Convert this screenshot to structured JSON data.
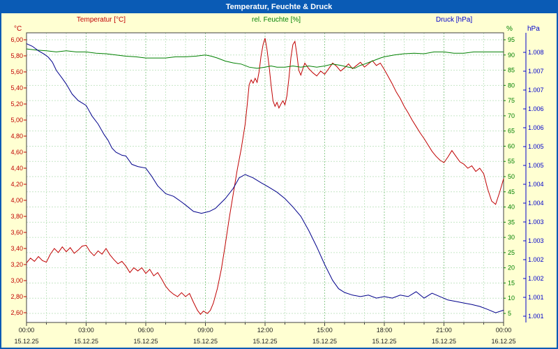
{
  "window": {
    "title": "Temperatur, Feuchte & Druck"
  },
  "colors": {
    "window_border": "#0a5bb5",
    "titlebar_bg": "#0a5bb5",
    "titlebar_text": "#ffffff",
    "background": "#ffffd2",
    "plot_bg": "#ffffff",
    "plot_frame": "#404040",
    "grid_minor": "#c6e6c6",
    "grid_major": "#8fcb8f",
    "axis_text": "#202020"
  },
  "header": {
    "series_labels": [
      {
        "key": "temperature",
        "label": "Temperatur [°C]",
        "color": "#c00000"
      },
      {
        "key": "humidity",
        "label": "rel. Feuchte [%]",
        "color": "#008000"
      },
      {
        "key": "pressure",
        "label": "Druck [hPa]",
        "color": "#0000cc"
      }
    ]
  },
  "chart_data": {
    "type": "line",
    "title": "Temperatur, Feuchte & Druck",
    "x_axis": {
      "range_hours": [
        0,
        24
      ],
      "major_tick_hours": 3,
      "minor_tick_hours": 1,
      "time_labels": [
        "00:00",
        "03:00",
        "06:00",
        "09:00",
        "12:00",
        "15:00",
        "18:00",
        "21:00",
        "00:00"
      ],
      "date_labels": [
        "15.12.25",
        "15.12.25",
        "15.12.25",
        "15.12.25",
        "15.12.25",
        "15.12.25",
        "15.12.25",
        "15.12.25",
        "16.12.25"
      ]
    },
    "axes": {
      "temperature": {
        "unit": "°C",
        "color": "#c00000",
        "min": 2.6,
        "max": 6.0,
        "tick_labels": [
          "6,00",
          "5,80",
          "5,60",
          "5,40",
          "5,20",
          "5,00",
          "4,80",
          "4,60",
          "4,40",
          "4,20",
          "4,00",
          "3,80",
          "3,60",
          "3,40",
          "3,20",
          "3,00",
          "2,80",
          "2,60"
        ]
      },
      "humidity": {
        "unit": "%",
        "color": "#008000",
        "min": 5,
        "max": 95,
        "tick_labels": [
          "95",
          "90",
          "85",
          "80",
          "75",
          "70",
          "65",
          "60",
          "55",
          "50",
          "45",
          "40",
          "35",
          "30",
          "25",
          "20",
          "15",
          "10",
          "5"
        ]
      },
      "pressure": {
        "unit": "hPa",
        "color": "#0000cc",
        "min": 1.001,
        "max": 1.008,
        "tick_labels": [
          "1.008",
          "1.007",
          "1.007",
          "1.006",
          "1.006",
          "1.005",
          "1.005",
          "1.004",
          "1.004",
          "1.003",
          "1.003",
          "1.002",
          "1.002",
          "1.001",
          "1.001"
        ]
      }
    },
    "series": [
      {
        "key": "temperature",
        "name": "Temperatur",
        "axis": "temperature",
        "color": "#c00000",
        "points": [
          [
            0.0,
            3.22
          ],
          [
            0.2,
            3.28
          ],
          [
            0.4,
            3.24
          ],
          [
            0.6,
            3.3
          ],
          [
            0.8,
            3.25
          ],
          [
            1.0,
            3.23
          ],
          [
            1.2,
            3.33
          ],
          [
            1.4,
            3.4
          ],
          [
            1.6,
            3.35
          ],
          [
            1.8,
            3.42
          ],
          [
            2.0,
            3.36
          ],
          [
            2.2,
            3.41
          ],
          [
            2.4,
            3.34
          ],
          [
            2.6,
            3.38
          ],
          [
            2.8,
            3.43
          ],
          [
            3.0,
            3.44
          ],
          [
            3.2,
            3.36
          ],
          [
            3.4,
            3.31
          ],
          [
            3.6,
            3.37
          ],
          [
            3.8,
            3.33
          ],
          [
            4.0,
            3.4
          ],
          [
            4.2,
            3.32
          ],
          [
            4.4,
            3.26
          ],
          [
            4.6,
            3.21
          ],
          [
            4.8,
            3.24
          ],
          [
            5.0,
            3.18
          ],
          [
            5.2,
            3.1
          ],
          [
            5.4,
            3.16
          ],
          [
            5.6,
            3.12
          ],
          [
            5.8,
            3.16
          ],
          [
            6.0,
            3.09
          ],
          [
            6.2,
            3.14
          ],
          [
            6.4,
            3.06
          ],
          [
            6.6,
            3.1
          ],
          [
            6.8,
            3.02
          ],
          [
            7.0,
            2.93
          ],
          [
            7.2,
            2.87
          ],
          [
            7.4,
            2.83
          ],
          [
            7.6,
            2.8
          ],
          [
            7.8,
            2.85
          ],
          [
            8.0,
            2.8
          ],
          [
            8.2,
            2.84
          ],
          [
            8.4,
            2.73
          ],
          [
            8.6,
            2.63
          ],
          [
            8.75,
            2.58
          ],
          [
            8.9,
            2.62
          ],
          [
            9.1,
            2.59
          ],
          [
            9.25,
            2.63
          ],
          [
            9.4,
            2.72
          ],
          [
            9.6,
            2.9
          ],
          [
            9.8,
            3.14
          ],
          [
            10.0,
            3.45
          ],
          [
            10.2,
            3.78
          ],
          [
            10.4,
            4.08
          ],
          [
            10.6,
            4.38
          ],
          [
            10.8,
            4.64
          ],
          [
            11.0,
            4.95
          ],
          [
            11.1,
            5.18
          ],
          [
            11.2,
            5.44
          ],
          [
            11.3,
            5.5
          ],
          [
            11.4,
            5.46
          ],
          [
            11.5,
            5.52
          ],
          [
            11.6,
            5.47
          ],
          [
            11.7,
            5.6
          ],
          [
            11.8,
            5.8
          ],
          [
            11.9,
            5.94
          ],
          [
            12.0,
            6.02
          ],
          [
            12.1,
            5.88
          ],
          [
            12.2,
            5.68
          ],
          [
            12.3,
            5.44
          ],
          [
            12.4,
            5.24
          ],
          [
            12.5,
            5.17
          ],
          [
            12.6,
            5.22
          ],
          [
            12.7,
            5.15
          ],
          [
            12.8,
            5.2
          ],
          [
            12.9,
            5.24
          ],
          [
            13.0,
            5.19
          ],
          [
            13.1,
            5.3
          ],
          [
            13.2,
            5.52
          ],
          [
            13.3,
            5.78
          ],
          [
            13.4,
            5.94
          ],
          [
            13.5,
            5.98
          ],
          [
            13.6,
            5.82
          ],
          [
            13.7,
            5.62
          ],
          [
            13.8,
            5.56
          ],
          [
            13.9,
            5.64
          ],
          [
            14.0,
            5.71
          ],
          [
            14.2,
            5.64
          ],
          [
            14.4,
            5.59
          ],
          [
            14.6,
            5.55
          ],
          [
            14.8,
            5.61
          ],
          [
            15.0,
            5.57
          ],
          [
            15.2,
            5.64
          ],
          [
            15.4,
            5.71
          ],
          [
            15.6,
            5.67
          ],
          [
            15.8,
            5.61
          ],
          [
            16.0,
            5.65
          ],
          [
            16.2,
            5.7
          ],
          [
            16.4,
            5.64
          ],
          [
            16.6,
            5.68
          ],
          [
            16.8,
            5.72
          ],
          [
            17.0,
            5.66
          ],
          [
            17.2,
            5.7
          ],
          [
            17.4,
            5.74
          ],
          [
            17.6,
            5.68
          ],
          [
            17.8,
            5.71
          ],
          [
            18.0,
            5.63
          ],
          [
            18.2,
            5.54
          ],
          [
            18.4,
            5.45
          ],
          [
            18.6,
            5.35
          ],
          [
            18.8,
            5.27
          ],
          [
            19.0,
            5.17
          ],
          [
            19.2,
            5.09
          ],
          [
            19.4,
            5.0
          ],
          [
            19.6,
            4.92
          ],
          [
            19.8,
            4.84
          ],
          [
            20.0,
            4.77
          ],
          [
            20.2,
            4.69
          ],
          [
            20.4,
            4.61
          ],
          [
            20.6,
            4.55
          ],
          [
            20.8,
            4.5
          ],
          [
            21.0,
            4.47
          ],
          [
            21.2,
            4.54
          ],
          [
            21.4,
            4.62
          ],
          [
            21.6,
            4.55
          ],
          [
            21.8,
            4.48
          ],
          [
            22.0,
            4.45
          ],
          [
            22.2,
            4.4
          ],
          [
            22.4,
            4.43
          ],
          [
            22.6,
            4.36
          ],
          [
            22.8,
            4.4
          ],
          [
            23.0,
            4.33
          ],
          [
            23.2,
            4.14
          ],
          [
            23.4,
            3.99
          ],
          [
            23.6,
            3.95
          ],
          [
            23.8,
            4.1
          ],
          [
            24.0,
            4.27
          ]
        ]
      },
      {
        "key": "humidity",
        "name": "rel. Feuchte",
        "axis": "humidity",
        "color": "#008000",
        "points": [
          [
            0.0,
            92.0
          ],
          [
            0.5,
            91.6
          ],
          [
            1.0,
            91.4
          ],
          [
            1.5,
            91.0
          ],
          [
            2.0,
            91.4
          ],
          [
            2.5,
            91.0
          ],
          [
            3.0,
            91.0
          ],
          [
            3.5,
            90.6
          ],
          [
            4.0,
            90.4
          ],
          [
            4.5,
            90.0
          ],
          [
            5.0,
            89.6
          ],
          [
            5.5,
            89.4
          ],
          [
            6.0,
            89.0
          ],
          [
            6.5,
            89.0
          ],
          [
            7.0,
            89.0
          ],
          [
            7.5,
            89.4
          ],
          [
            8.0,
            89.4
          ],
          [
            8.5,
            89.6
          ],
          [
            9.0,
            90.0
          ],
          [
            9.3,
            89.6
          ],
          [
            9.6,
            89.0
          ],
          [
            10.0,
            88.0
          ],
          [
            10.4,
            87.4
          ],
          [
            10.8,
            87.0
          ],
          [
            11.2,
            86.0
          ],
          [
            11.6,
            85.6
          ],
          [
            12.0,
            86.0
          ],
          [
            12.3,
            86.4
          ],
          [
            12.6,
            86.0
          ],
          [
            13.0,
            86.0
          ],
          [
            13.4,
            86.4
          ],
          [
            13.8,
            86.0
          ],
          [
            14.2,
            86.4
          ],
          [
            14.6,
            86.0
          ],
          [
            15.0,
            86.4
          ],
          [
            15.4,
            87.0
          ],
          [
            15.8,
            86.6
          ],
          [
            16.2,
            86.0
          ],
          [
            16.5,
            85.6
          ],
          [
            16.8,
            86.6
          ],
          [
            17.0,
            87.0
          ],
          [
            17.4,
            88.0
          ],
          [
            17.8,
            89.0
          ],
          [
            18.0,
            89.4
          ],
          [
            18.5,
            90.0
          ],
          [
            19.0,
            90.4
          ],
          [
            19.5,
            90.6
          ],
          [
            20.0,
            90.4
          ],
          [
            20.5,
            91.0
          ],
          [
            21.0,
            91.0
          ],
          [
            21.5,
            90.6
          ],
          [
            22.0,
            90.6
          ],
          [
            22.5,
            91.0
          ],
          [
            23.0,
            91.0
          ],
          [
            23.5,
            91.0
          ],
          [
            24.0,
            91.0
          ]
        ]
      },
      {
        "key": "pressure",
        "name": "Druck",
        "axis": "pressure",
        "color": "#00008b",
        "points": [
          [
            0.0,
            1.00823
          ],
          [
            0.3,
            1.00816
          ],
          [
            0.6,
            1.00804
          ],
          [
            0.9,
            1.00795
          ],
          [
            1.1,
            1.00787
          ],
          [
            1.3,
            1.00774
          ],
          [
            1.5,
            1.00752
          ],
          [
            1.8,
            1.00731
          ],
          [
            2.0,
            1.00716
          ],
          [
            2.3,
            1.00689
          ],
          [
            2.6,
            1.00672
          ],
          [
            3.0,
            1.00659
          ],
          [
            3.3,
            1.00631
          ],
          [
            3.6,
            1.0061
          ],
          [
            3.9,
            1.00582
          ],
          [
            4.1,
            1.00567
          ],
          [
            4.3,
            1.00546
          ],
          [
            4.5,
            1.00535
          ],
          [
            4.8,
            1.00527
          ],
          [
            5.0,
            1.00525
          ],
          [
            5.3,
            1.00503
          ],
          [
            5.6,
            1.00497
          ],
          [
            6.0,
            1.00493
          ],
          [
            6.3,
            1.00471
          ],
          [
            6.6,
            1.00446
          ],
          [
            7.0,
            1.00425
          ],
          [
            7.4,
            1.00418
          ],
          [
            7.8,
            1.00403
          ],
          [
            8.0,
            1.00395
          ],
          [
            8.4,
            1.00378
          ],
          [
            8.8,
            1.00373
          ],
          [
            9.2,
            1.00378
          ],
          [
            9.5,
            1.00386
          ],
          [
            10.0,
            1.00412
          ],
          [
            10.4,
            1.00439
          ],
          [
            10.7,
            1.00467
          ],
          [
            11.0,
            1.00476
          ],
          [
            11.4,
            1.00467
          ],
          [
            11.8,
            1.00454
          ],
          [
            12.2,
            1.00442
          ],
          [
            12.6,
            1.00429
          ],
          [
            13.0,
            1.00412
          ],
          [
            13.4,
            1.0039
          ],
          [
            13.8,
            1.00365
          ],
          [
            14.2,
            1.00327
          ],
          [
            14.6,
            1.00284
          ],
          [
            15.0,
            1.00237
          ],
          [
            15.4,
            1.00195
          ],
          [
            15.7,
            1.00173
          ],
          [
            16.0,
            1.00163
          ],
          [
            16.4,
            1.00156
          ],
          [
            16.8,
            1.00152
          ],
          [
            17.2,
            1.00156
          ],
          [
            17.6,
            1.00148
          ],
          [
            18.0,
            1.00152
          ],
          [
            18.4,
            1.00148
          ],
          [
            18.8,
            1.00156
          ],
          [
            19.2,
            1.00152
          ],
          [
            19.6,
            1.00165
          ],
          [
            20.0,
            1.00148
          ],
          [
            20.4,
            1.00161
          ],
          [
            20.8,
            1.00152
          ],
          [
            21.2,
            1.00143
          ],
          [
            21.6,
            1.00139
          ],
          [
            22.0,
            1.00135
          ],
          [
            22.4,
            1.00131
          ],
          [
            22.8,
            1.00126
          ],
          [
            23.2,
            1.00118
          ],
          [
            23.6,
            1.00109
          ],
          [
            24.0,
            1.00116
          ]
        ]
      }
    ]
  }
}
